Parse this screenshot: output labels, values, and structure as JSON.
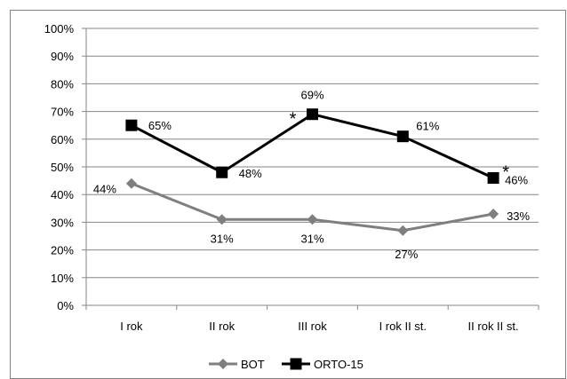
{
  "chart_data": {
    "type": "line",
    "categories": [
      "I rok",
      "II rok",
      "III rok",
      "I rok II st.",
      "II rok II st."
    ],
    "y_ticks": [
      "0%",
      "10%",
      "20%",
      "30%",
      "40%",
      "50%",
      "60%",
      "70%",
      "80%",
      "90%",
      "100%"
    ],
    "ylim": [
      0,
      100
    ],
    "grid": true,
    "legend_position": "bottom",
    "series": [
      {
        "name": "BOT",
        "values": [
          44,
          31,
          31,
          27,
          33
        ],
        "labels": [
          "44%",
          "31%",
          "31%",
          "27%",
          "33%"
        ],
        "color": "#7f7f7f",
        "marker": "diamond"
      },
      {
        "name": "ORTO-15",
        "values": [
          65,
          48,
          69,
          61,
          46
        ],
        "labels": [
          "65%",
          "48%",
          "69%",
          "61%",
          "46%"
        ],
        "color": "#000000",
        "marker": "square"
      }
    ],
    "annotations": [
      {
        "text": "*",
        "category": "III rok",
        "series": "ORTO-15"
      },
      {
        "text": "*",
        "category": "II rok II st.",
        "series": "ORTO-15"
      }
    ]
  }
}
